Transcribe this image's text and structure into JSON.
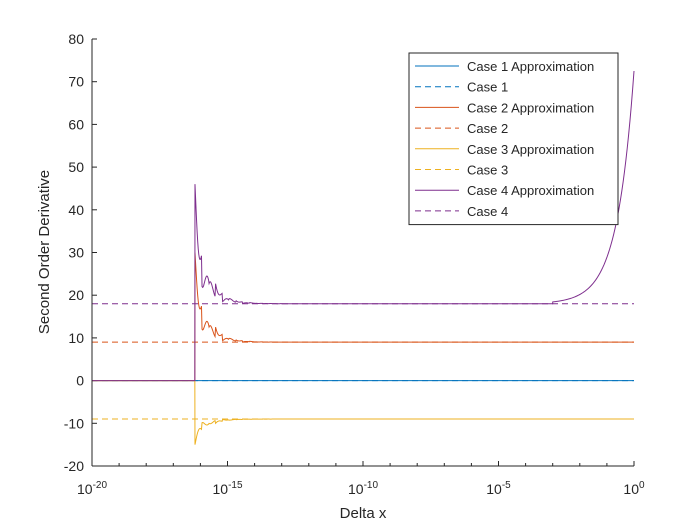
{
  "chart_data": {
    "type": "line",
    "title": "",
    "xlabel": "Delta x",
    "ylabel": "Second Order Derivative",
    "xscale": "log",
    "xlim_exponent": [
      -20,
      0
    ],
    "xtick_exponents": [
      -20,
      -15,
      -10,
      -5,
      0
    ],
    "xtick_base": "10",
    "ylim": [
      -20,
      80
    ],
    "yticks": [
      "-20",
      "-10",
      "0",
      "10",
      "20",
      "30",
      "40",
      "50",
      "60",
      "70",
      "80"
    ],
    "grid": false,
    "legend_position": "top-right",
    "series": [
      {
        "name": "Case 1 Approximation",
        "color": "#0072BD",
        "style": "solid",
        "true_value": 0
      },
      {
        "name": "Case 1",
        "color": "#0072BD",
        "style": "dashed",
        "value": 0
      },
      {
        "name": "Case 2 Approximation",
        "color": "#D95319",
        "style": "solid",
        "true_value": 9
      },
      {
        "name": "Case 2",
        "color": "#D95319",
        "style": "dashed",
        "value": 9
      },
      {
        "name": "Case 3 Approximation",
        "color": "#EDB120",
        "style": "solid",
        "true_value": -9
      },
      {
        "name": "Case 3",
        "color": "#EDB120",
        "style": "dashed",
        "value": -9
      },
      {
        "name": "Case 4 Approximation",
        "color": "#7E2F8E",
        "style": "solid",
        "true_value": 18
      },
      {
        "name": "Case 4",
        "color": "#7E2F8E",
        "style": "dashed",
        "value": 18
      }
    ],
    "approximation_behavior": {
      "zero_before_log10_dx": -16.2,
      "onset_log10_dx": -16.2,
      "spike_values": {
        "case2": 30,
        "case3": -15,
        "case4": 46
      },
      "settle_log10_dx": -14.5,
      "case4_end_value": 72.5
    }
  }
}
